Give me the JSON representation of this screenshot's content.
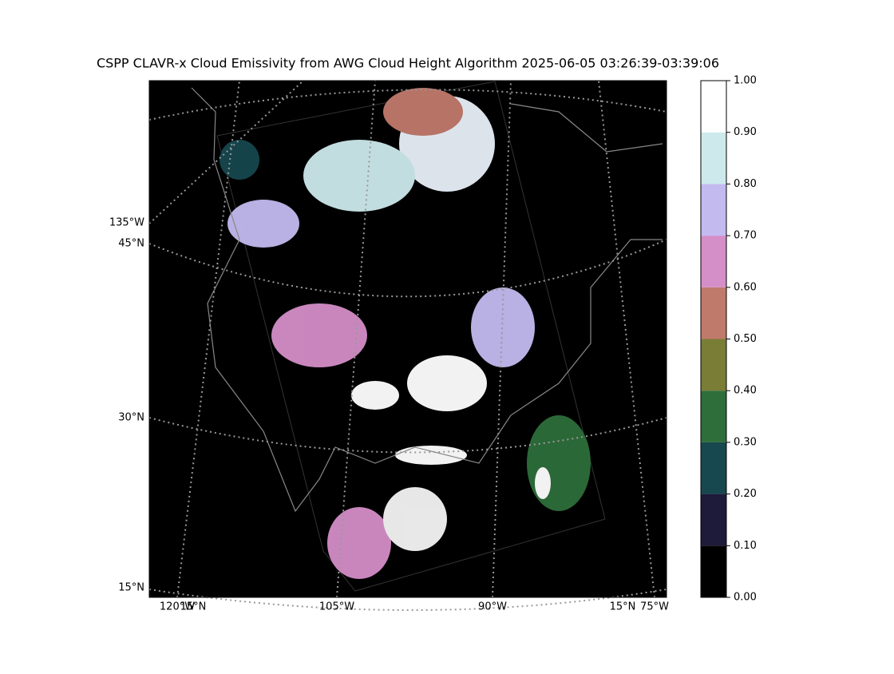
{
  "title": "CSPP CLAVR-x Cloud Emissivity from AWG Cloud Height Algorithm 2025-06-05 03:26:39-03:39:06",
  "map": {
    "left_labels": [
      "135°W",
      "45°N",
      "30°N",
      "15°N"
    ],
    "bottom_labels": [
      "120°W",
      "15°N",
      "105°W",
      "90°W",
      "15°N",
      "75°W"
    ]
  },
  "colorbar": {
    "ticks": [
      {
        "value": 0,
        "label": "0.00"
      },
      {
        "value": 0.1,
        "label": "0.10"
      },
      {
        "value": 0.2,
        "label": "0.20"
      },
      {
        "value": 0.3,
        "label": "0.30"
      },
      {
        "value": 0.4,
        "label": "0.40"
      },
      {
        "value": 0.5,
        "label": "0.50"
      },
      {
        "value": 0.6,
        "label": "0.60"
      },
      {
        "value": 0.7,
        "label": "0.70"
      },
      {
        "value": 0.8,
        "label": "0.80"
      },
      {
        "value": 0.9,
        "label": "0.90"
      },
      {
        "value": 1,
        "label": "1.00"
      }
    ],
    "lim": [
      0,
      1
    ],
    "colors": [
      "#000000",
      "#1e1a3a",
      "#17474f",
      "#2e6e3a",
      "#7a7d35",
      "#c07a6c",
      "#d48ec8",
      "#c3baf0",
      "#cde9ec",
      "#ffffff"
    ]
  }
}
